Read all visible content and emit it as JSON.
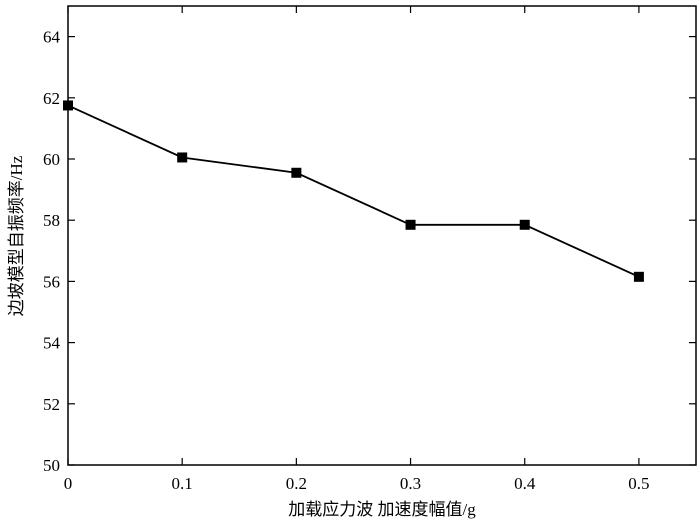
{
  "chart_data": {
    "type": "line",
    "x": [
      0,
      0.1,
      0.2,
      0.3,
      0.4,
      0.5
    ],
    "series": [
      {
        "color": "#000000",
        "values": [
          61.75,
          60.05,
          59.55,
          57.85,
          57.85,
          56.15
        ]
      }
    ],
    "xlim": [
      0,
      0.55
    ],
    "xticks": [
      0,
      0.1,
      0.2,
      0.3,
      0.4,
      0.5
    ],
    "ylim": [
      50,
      65
    ],
    "yticks": [
      50,
      52,
      54,
      56,
      58,
      60,
      62,
      64
    ],
    "xlabel": "加载应力波 加速度幅值/g",
    "ylabel": "边坡模型自振频率/Hz"
  }
}
